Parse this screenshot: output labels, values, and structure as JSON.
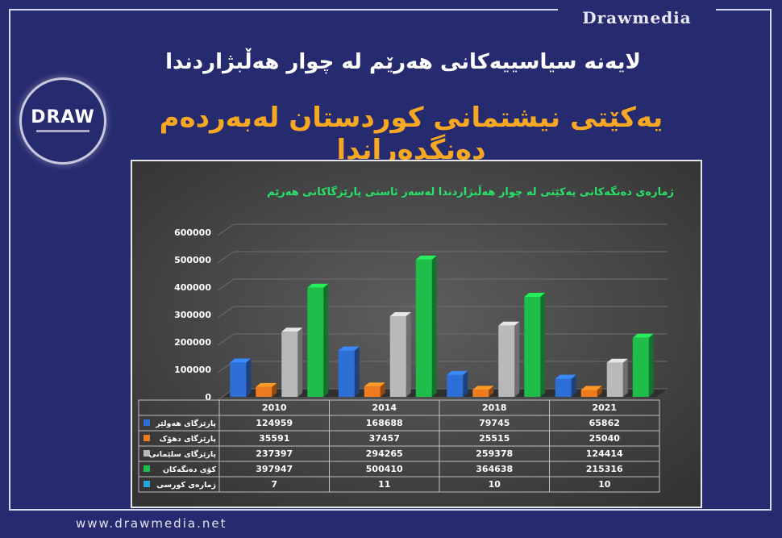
{
  "brand": "Drawmedia",
  "logo_text": "DRAW",
  "headline": "لایەنە سیاسییەکانی هەرێم لە چوار هەڵبژاردندا",
  "subheadline": "یەکێتی نیشتمانی کوردستان لەبەردەم دەنگدەراندا",
  "footer_url": "www.drawmedia.net",
  "chart_data": {
    "type": "bar",
    "title": "ژمارەی دەنگەکانی یەکێتی لە چوار هەڵبژاردندا لەسەر ئاستی پارێزگاکانی هەرێم",
    "categories": [
      "2010",
      "2014",
      "2018",
      "2021"
    ],
    "ylim": [
      0,
      600000
    ],
    "yticks": [
      0,
      100000,
      200000,
      300000,
      400000,
      500000,
      600000
    ],
    "series": [
      {
        "name": "پارێزگای هەولێر",
        "color": "#2e6fd6",
        "values": [
          124959,
          168688,
          79745,
          65862
        ]
      },
      {
        "name": "پارێزگای دهۆک",
        "color": "#f07a1e",
        "values": [
          35591,
          37457,
          25515,
          25040
        ]
      },
      {
        "name": "پارێزگای سلێمانی",
        "color": "#b9b9b9",
        "values": [
          237397,
          294265,
          259378,
          124414
        ]
      },
      {
        "name": "کۆی دەنگەکان",
        "color": "#1fbe4a",
        "values": [
          397947,
          500410,
          364638,
          215316
        ]
      },
      {
        "name": "ژمارەی کورسی",
        "color": "#2aa6d6",
        "values": [
          7,
          11,
          10,
          10
        ]
      }
    ]
  }
}
